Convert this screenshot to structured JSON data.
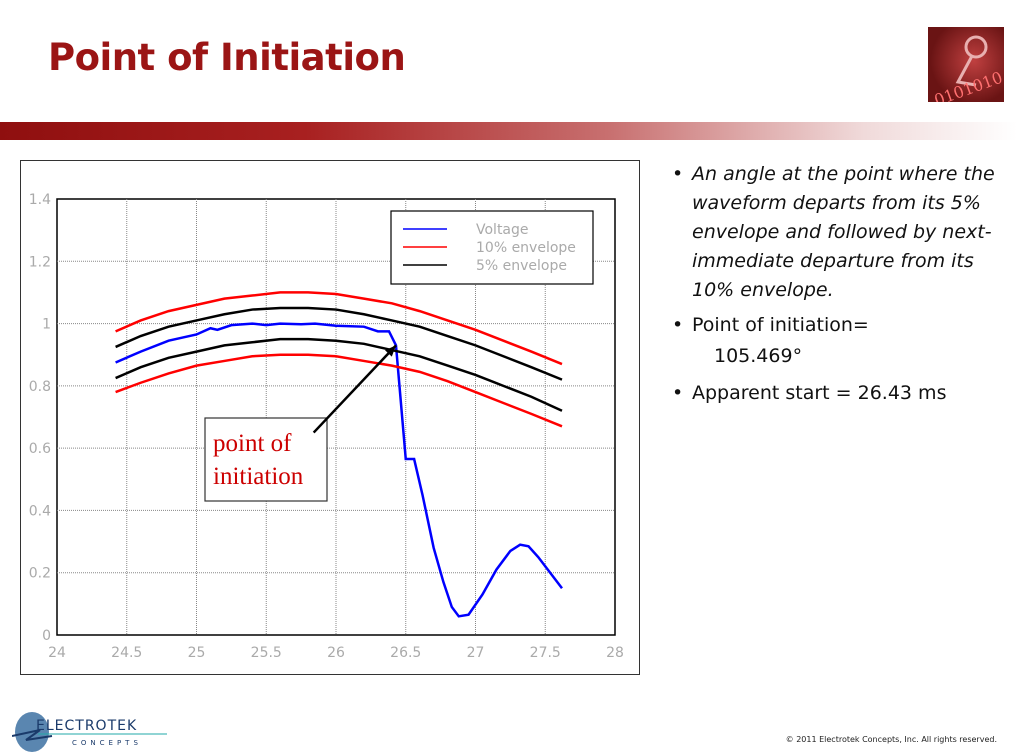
{
  "slide": {
    "title": "Point of Initiation",
    "bullets": [
      {
        "text": "An angle at the point where the waveform departs from its 5% envelope and followed by next-immediate departure from its 10% envelope.",
        "italic": true
      },
      {
        "text": "Point of initiation=",
        "value": "105.469°"
      },
      {
        "text": "Apparent start = 26.43 ms"
      }
    ],
    "footer": {
      "logo_text": "ELECTROTEK",
      "logo_subtext": "CONCEPTS",
      "copyright": "© 2011 Electrotek Concepts,  Inc. All rights reserved."
    },
    "header_image_icon": "electrotek-waveform-graphic"
  },
  "chart_data": {
    "type": "line",
    "title": "",
    "xlabel": "",
    "ylabel": "",
    "xlim": [
      24,
      28
    ],
    "ylim": [
      0,
      1.4
    ],
    "xticks": [
      "24",
      "24.5",
      "25",
      "25.5",
      "26",
      "26.5",
      "27",
      "27.5",
      "28"
    ],
    "yticks": [
      "0",
      "0.2",
      "0.4",
      "0.6",
      "0.8",
      "1",
      "1.2",
      "1.4"
    ],
    "grid": true,
    "legend_position": "top-right",
    "series": [
      {
        "name": "Voltage",
        "color": "#0000ff",
        "x": [
          24.42,
          24.6,
          24.8,
          24.9,
          25.0,
          25.1,
          25.15,
          25.25,
          25.4,
          25.5,
          25.6,
          25.75,
          25.85,
          26.0,
          26.2,
          26.3,
          26.38,
          26.43,
          26.5,
          26.56,
          26.62,
          26.7,
          26.77,
          26.83,
          26.88,
          26.95,
          27.05,
          27.15,
          27.25,
          27.32,
          27.38,
          27.45,
          27.62
        ],
        "y": [
          0.875,
          0.91,
          0.945,
          0.955,
          0.965,
          0.985,
          0.98,
          0.995,
          1.0,
          0.995,
          1.0,
          0.998,
          1.0,
          0.993,
          0.99,
          0.975,
          0.975,
          0.93,
          0.565,
          0.565,
          0.45,
          0.28,
          0.17,
          0.09,
          0.06,
          0.065,
          0.13,
          0.21,
          0.27,
          0.29,
          0.285,
          0.25,
          0.15
        ]
      },
      {
        "name": "10% envelope",
        "color": "#ff0000",
        "x": [
          24.42,
          24.6,
          24.8,
          25.0,
          25.2,
          25.4,
          25.6,
          25.8,
          26.0,
          26.2,
          26.4,
          26.6,
          26.8,
          27.0,
          27.2,
          27.4,
          27.62
        ],
        "y": [
          0.975,
          1.01,
          1.04,
          1.06,
          1.08,
          1.09,
          1.1,
          1.1,
          1.095,
          1.08,
          1.065,
          1.04,
          1.01,
          0.98,
          0.945,
          0.91,
          0.87
        ]
      },
      {
        "name": "10% envelope",
        "color": "#ff0000",
        "legend": false,
        "x": [
          24.42,
          24.6,
          24.8,
          25.0,
          25.2,
          25.4,
          25.6,
          25.8,
          26.0,
          26.2,
          26.4,
          26.6,
          26.8,
          27.0,
          27.2,
          27.4,
          27.62
        ],
        "y": [
          0.78,
          0.81,
          0.84,
          0.865,
          0.88,
          0.895,
          0.9,
          0.9,
          0.895,
          0.88,
          0.865,
          0.845,
          0.815,
          0.78,
          0.745,
          0.71,
          0.67
        ]
      },
      {
        "name": "5% envelope",
        "color": "#000000",
        "x": [
          24.42,
          24.6,
          24.8,
          25.0,
          25.2,
          25.4,
          25.6,
          25.8,
          26.0,
          26.2,
          26.4,
          26.6,
          26.8,
          27.0,
          27.2,
          27.4,
          27.62
        ],
        "y": [
          0.925,
          0.96,
          0.99,
          1.01,
          1.03,
          1.045,
          1.05,
          1.05,
          1.045,
          1.03,
          1.01,
          0.99,
          0.96,
          0.93,
          0.895,
          0.86,
          0.82
        ]
      },
      {
        "name": "5% envelope",
        "color": "#000000",
        "legend": false,
        "x": [
          24.42,
          24.6,
          24.8,
          25.0,
          25.2,
          25.4,
          25.6,
          25.8,
          26.0,
          26.2,
          26.4,
          26.6,
          26.8,
          27.0,
          27.2,
          27.4,
          27.62
        ],
        "y": [
          0.825,
          0.86,
          0.89,
          0.91,
          0.93,
          0.94,
          0.95,
          0.95,
          0.945,
          0.935,
          0.915,
          0.895,
          0.865,
          0.835,
          0.8,
          0.765,
          0.72
        ]
      }
    ],
    "annotations": [
      {
        "text_line1": "point of",
        "text_line2": "initiation",
        "color": "#cc0000",
        "arrow_from": [
          25.84,
          0.65
        ],
        "arrow_to": [
          26.43,
          0.93
        ]
      }
    ]
  }
}
